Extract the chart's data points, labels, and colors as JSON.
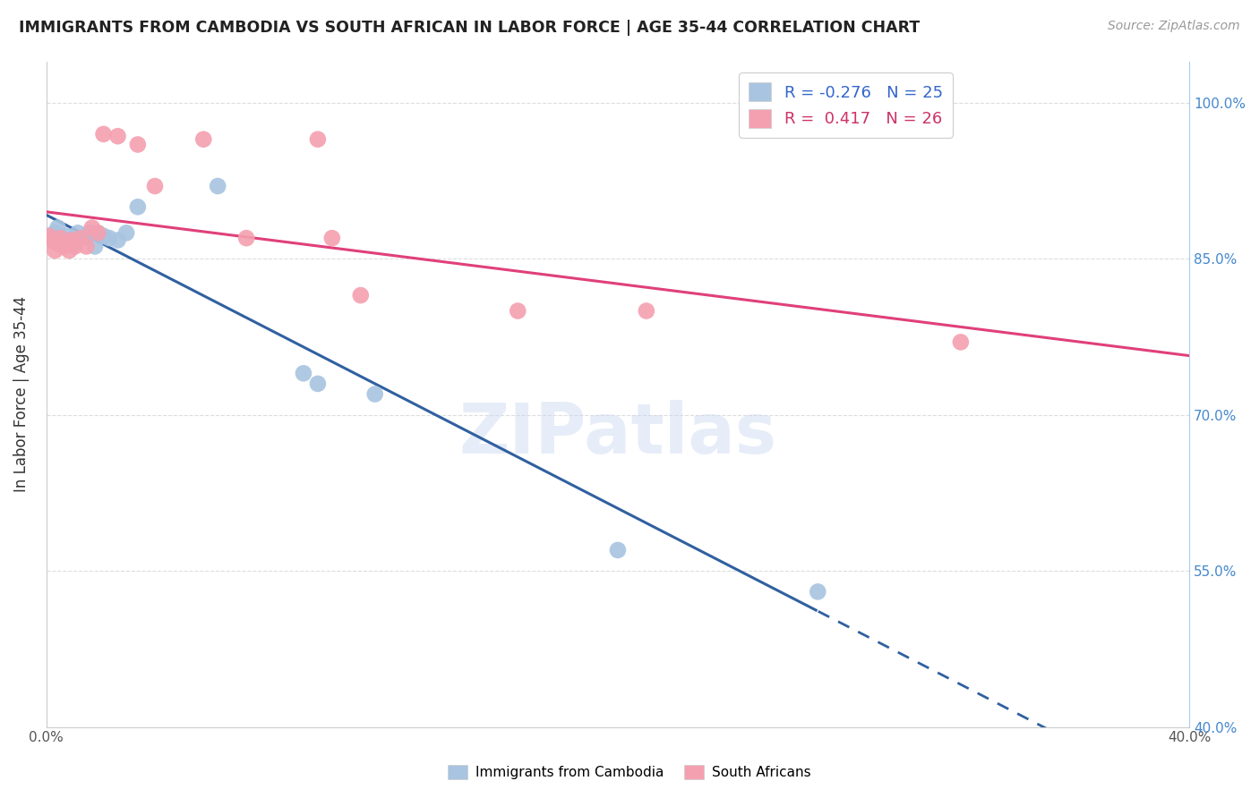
{
  "title": "IMMIGRANTS FROM CAMBODIA VS SOUTH AFRICAN IN LABOR FORCE | AGE 35-44 CORRELATION CHART",
  "source": "Source: ZipAtlas.com",
  "ylabel": "In Labor Force | Age 35-44",
  "xlim": [
    0.0,
    0.4
  ],
  "ylim": [
    0.4,
    1.04
  ],
  "xtick_positions": [
    0.0,
    0.05,
    0.1,
    0.15,
    0.2,
    0.25,
    0.3,
    0.35,
    0.4
  ],
  "xtick_labels": [
    "0.0%",
    "",
    "",
    "",
    "",
    "",
    "",
    "",
    "40.0%"
  ],
  "ytick_positions": [
    0.4,
    0.55,
    0.7,
    0.85,
    1.0
  ],
  "ytick_labels_right": [
    "40.0%",
    "55.0%",
    "70.0%",
    "85.0%",
    "100.0%"
  ],
  "legend_r_cambodia": "-0.276",
  "legend_n_cambodia": "25",
  "legend_r_safrica": "0.417",
  "legend_n_safrica": "26",
  "cambodia_color": "#a8c4e0",
  "safrica_color": "#f4a0b0",
  "trendline_cambodia_color": "#3060a0",
  "trendline_safrica_color": "#e0407a",
  "watermark": "ZIPatlas",
  "background_color": "#ffffff",
  "grid_color": "#dddddd",
  "cambodia_x": [
    0.001,
    0.002,
    0.003,
    0.004,
    0.005,
    0.006,
    0.007,
    0.008,
    0.01,
    0.011,
    0.013,
    0.015,
    0.017,
    0.018,
    0.02,
    0.022,
    0.025,
    0.028,
    0.032,
    0.06,
    0.09,
    0.095,
    0.115,
    0.2,
    0.27
  ],
  "cambodia_y": [
    0.872,
    0.868,
    0.875,
    0.88,
    0.87,
    0.865,
    0.872,
    0.868,
    0.865,
    0.875,
    0.87,
    0.875,
    0.862,
    0.875,
    0.872,
    0.87,
    0.868,
    0.875,
    0.9,
    0.92,
    0.74,
    0.73,
    0.72,
    0.57,
    0.53
  ],
  "safrica_x": [
    0.001,
    0.002,
    0.003,
    0.004,
    0.005,
    0.006,
    0.007,
    0.008,
    0.009,
    0.01,
    0.012,
    0.014,
    0.016,
    0.018,
    0.02,
    0.025,
    0.032,
    0.038,
    0.055,
    0.07,
    0.095,
    0.1,
    0.11,
    0.165,
    0.21,
    0.32
  ],
  "safrica_y": [
    0.872,
    0.868,
    0.858,
    0.865,
    0.87,
    0.862,
    0.865,
    0.858,
    0.868,
    0.862,
    0.87,
    0.862,
    0.88,
    0.875,
    0.97,
    0.968,
    0.96,
    0.92,
    0.965,
    0.87,
    0.965,
    0.87,
    0.815,
    0.8,
    0.8,
    0.77
  ]
}
